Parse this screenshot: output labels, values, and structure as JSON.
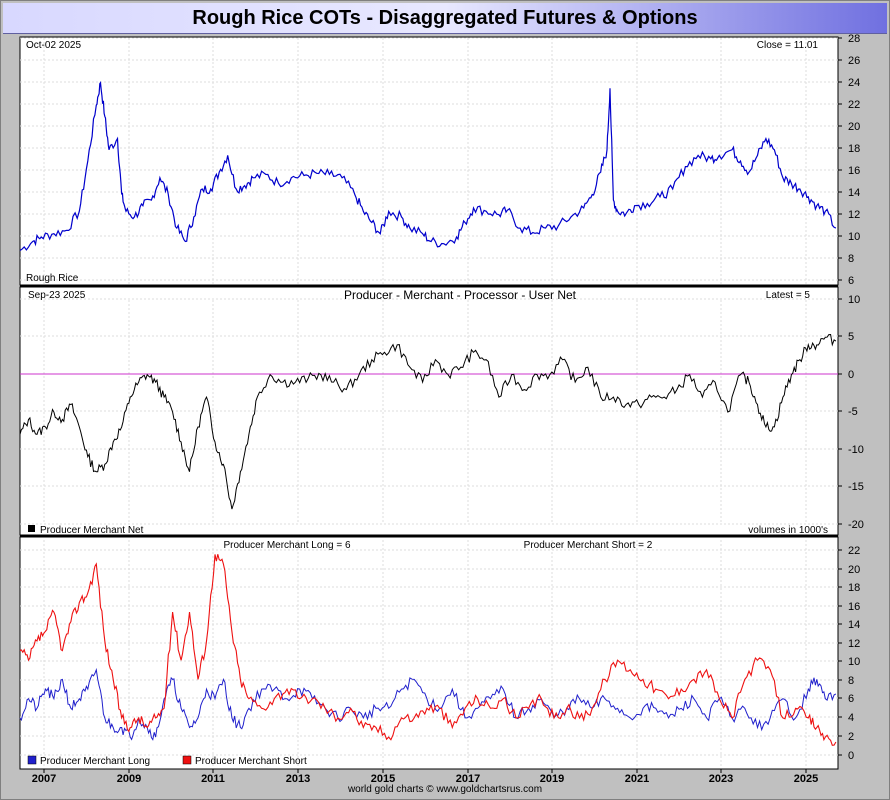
{
  "title": "Rough Rice COTs - Disaggregated Futures & Options",
  "footer": "world gold charts © www.goldchartsrus.com",
  "colors": {
    "price": "#0000cc",
    "net": "#000000",
    "long": "#2020cc",
    "short": "#ee1111",
    "zero": "#cc33cc",
    "background": "#ffffff",
    "panel_bg": "#c0c0c0"
  },
  "x_axis_years": [
    "2007",
    "2009",
    "2011",
    "2013",
    "2015",
    "2017",
    "2019",
    "2021",
    "2023",
    "2025"
  ],
  "panels": {
    "price": {
      "date_label": "Oct-02  2025",
      "close_label": "Close = 11.01",
      "bottom_label": "Rough Rice",
      "yticks": [
        "28",
        "26",
        "24",
        "22",
        "20",
        "18",
        "16",
        "14",
        "12",
        "10",
        "8",
        "6"
      ]
    },
    "net": {
      "date_label": "Sep-23  2025",
      "title": "Producer - Merchant - Processor - User Net",
      "latest_label": "Latest = 5",
      "legend": "Producer Merchant Net",
      "volume_note": "volumes in 1000's",
      "yticks": [
        "10",
        "5",
        "0",
        "-5",
        "-10",
        "-15",
        "-20"
      ]
    },
    "longshort": {
      "long_label": "Producer Merchant Long = 6",
      "short_label": "Producer Merchant Short = 2",
      "legend_long": "Producer Merchant Long",
      "legend_short": "Producer Merchant Short",
      "yticks": [
        "22",
        "20",
        "18",
        "16",
        "14",
        "12",
        "10",
        "8",
        "6",
        "4",
        "2",
        "0"
      ]
    }
  },
  "chart_data": [
    {
      "type": "line",
      "ylabel": "Rough Rice",
      "ylim": [
        6,
        28
      ],
      "xlim": [
        2006.5,
        2025.8
      ],
      "series": [
        {
          "x": [
            2006.5,
            2006.8,
            2007.0,
            2007.3,
            2007.6,
            2007.9,
            2008.1,
            2008.3,
            2008.4,
            2008.5,
            2008.6,
            2008.8,
            2008.9,
            2009.0,
            2009.2,
            2009.4,
            2009.6,
            2009.8,
            2010.0,
            2010.2,
            2010.4,
            2010.6,
            2010.8,
            2011.0,
            2011.2,
            2011.4,
            2011.6,
            2011.8,
            2012.0,
            2012.3,
            2012.6,
            2012.9,
            2013.2,
            2013.5,
            2013.8,
            2014.1,
            2014.4,
            2014.6,
            2014.8,
            2015.0,
            2015.2,
            2015.5,
            2015.7,
            2016.0,
            2016.2,
            2016.5,
            2016.8,
            2017.0,
            2017.2,
            2017.5,
            2017.8,
            2018.0,
            2018.3,
            2018.6,
            2018.9,
            2019.2,
            2019.5,
            2019.8,
            2020.0,
            2020.2,
            2020.35,
            2020.42,
            2020.5,
            2020.6,
            2020.8,
            2021.0,
            2021.3,
            2021.6,
            2021.9,
            2022.2,
            2022.5,
            2022.8,
            2023.0,
            2023.3,
            2023.5,
            2023.7,
            2023.9,
            2024.1,
            2024.3,
            2024.5,
            2024.7,
            2024.9,
            2025.1,
            2025.3,
            2025.5,
            2025.75
          ],
          "y": [
            9.0,
            9.8,
            10.2,
            10.5,
            10.8,
            12.5,
            17.0,
            22.0,
            24.0,
            21.0,
            18.0,
            19.0,
            14.0,
            12.5,
            12.0,
            13.0,
            13.5,
            15.5,
            14.0,
            11.0,
            9.8,
            12.0,
            14.5,
            14.5,
            16.0,
            17.5,
            14.5,
            14.8,
            15.5,
            15.8,
            15.0,
            15.5,
            15.7,
            15.9,
            15.8,
            15.5,
            14.0,
            12.5,
            11.5,
            10.5,
            12.5,
            12.0,
            11.0,
            10.5,
            9.8,
            9.6,
            10.2,
            11.5,
            12.8,
            12.5,
            12.2,
            12.6,
            11.0,
            10.6,
            11.0,
            11.2,
            12.0,
            12.8,
            14.0,
            16.0,
            18.0,
            23.5,
            13.5,
            12.5,
            12.3,
            13.0,
            13.2,
            13.8,
            14.5,
            16.5,
            17.5,
            17.2,
            17.5,
            18.0,
            17.0,
            16.0,
            17.5,
            19.0,
            18.0,
            15.5,
            15.0,
            14.5,
            13.8,
            13.0,
            12.5,
            11.0
          ]
        }
      ]
    },
    {
      "type": "line",
      "title": "Producer - Merchant - Processor - User Net",
      "ylim": [
        -20,
        10
      ],
      "xlim": [
        2006.5,
        2025.8
      ],
      "series": [
        {
          "name": "Producer Merchant Net",
          "x": [
            2006.5,
            2006.7,
            2006.9,
            2007.1,
            2007.3,
            2007.5,
            2007.7,
            2007.9,
            2008.1,
            2008.3,
            2008.5,
            2008.7,
            2008.9,
            2009.1,
            2009.3,
            2009.5,
            2009.7,
            2009.9,
            2010.1,
            2010.3,
            2010.5,
            2010.7,
            2010.9,
            2011.1,
            2011.3,
            2011.5,
            2011.7,
            2011.9,
            2012.1,
            2012.4,
            2012.7,
            2013.0,
            2013.3,
            2013.6,
            2013.9,
            2014.2,
            2014.5,
            2014.8,
            2015.1,
            2015.4,
            2015.7,
            2016.0,
            2016.3,
            2016.6,
            2016.9,
            2017.2,
            2017.5,
            2017.8,
            2018.1,
            2018.4,
            2018.7,
            2019.0,
            2019.3,
            2019.6,
            2019.9,
            2020.2,
            2020.5,
            2020.8,
            2021.1,
            2021.4,
            2021.7,
            2022.0,
            2022.3,
            2022.6,
            2022.9,
            2023.2,
            2023.5,
            2023.7,
            2023.9,
            2024.1,
            2024.3,
            2024.5,
            2024.7,
            2024.9,
            2025.1,
            2025.3,
            2025.5,
            2025.75
          ],
          "y": [
            -8,
            -6,
            -8,
            -7,
            -5,
            -6,
            -4,
            -7,
            -11,
            -13,
            -12,
            -9,
            -7,
            -3,
            -1,
            0,
            -1,
            -3,
            -5,
            -9,
            -13,
            -7,
            -3,
            -9,
            -12,
            -18,
            -13,
            -8,
            -3,
            0,
            -1,
            -1,
            -0.5,
            0,
            -1,
            -2,
            0,
            2,
            3,
            4,
            1,
            -1,
            2,
            0,
            1,
            3,
            2,
            -3,
            0,
            -2,
            0,
            0,
            2,
            -1,
            1,
            -3,
            -3,
            -4,
            -4,
            -3,
            -3,
            -2,
            0,
            -3,
            -1,
            -5,
            0,
            -1,
            -4,
            -7,
            -7,
            -3,
            0,
            2,
            4,
            4,
            5,
            4.5
          ]
        }
      ]
    },
    {
      "type": "line",
      "ylim": [
        -1,
        22.5
      ],
      "xlim": [
        2006.5,
        2025.8
      ],
      "series": [
        {
          "name": "Producer Merchant Long",
          "x": [
            2006.5,
            2006.7,
            2006.9,
            2007.1,
            2007.3,
            2007.5,
            2007.7,
            2007.9,
            2008.1,
            2008.3,
            2008.5,
            2008.7,
            2008.9,
            2009.1,
            2009.3,
            2009.5,
            2009.7,
            2009.9,
            2010.1,
            2010.3,
            2010.5,
            2010.7,
            2010.9,
            2011.1,
            2011.3,
            2011.5,
            2011.7,
            2011.9,
            2012.2,
            2012.5,
            2012.8,
            2013.1,
            2013.4,
            2013.7,
            2014.0,
            2014.3,
            2014.6,
            2014.9,
            2015.2,
            2015.5,
            2015.8,
            2016.1,
            2016.4,
            2016.7,
            2017.0,
            2017.3,
            2017.6,
            2017.9,
            2018.2,
            2018.5,
            2018.8,
            2019.1,
            2019.4,
            2019.7,
            2020.0,
            2020.3,
            2020.6,
            2020.9,
            2021.2,
            2021.5,
            2021.8,
            2022.1,
            2022.4,
            2022.7,
            2023.0,
            2023.3,
            2023.6,
            2023.9,
            2024.2,
            2024.5,
            2024.8,
            2025.1,
            2025.3,
            2025.5,
            2025.75
          ],
          "y": [
            4,
            6,
            5,
            7,
            6,
            8,
            5,
            6,
            7,
            9,
            4,
            3,
            3,
            2,
            4,
            3,
            2,
            6,
            8,
            5,
            3,
            4,
            7,
            6,
            8,
            4,
            3,
            5,
            7,
            7,
            6,
            7,
            6,
            5,
            4,
            5,
            4,
            5,
            5,
            7,
            8,
            6,
            5,
            7,
            4,
            5,
            6,
            7,
            4,
            5,
            6,
            4,
            5,
            6,
            5,
            6,
            5,
            4,
            5,
            5,
            4,
            5,
            6,
            4,
            6,
            4,
            5,
            3,
            4,
            6,
            4,
            7,
            8,
            6,
            6.5
          ]
        },
        {
          "name": "Producer Merchant Short",
          "x": [
            2006.5,
            2006.7,
            2006.9,
            2007.1,
            2007.3,
            2007.5,
            2007.7,
            2007.9,
            2008.1,
            2008.3,
            2008.5,
            2008.7,
            2008.9,
            2009.1,
            2009.3,
            2009.5,
            2009.7,
            2009.9,
            2010.1,
            2010.3,
            2010.5,
            2010.7,
            2010.9,
            2011.1,
            2011.3,
            2011.5,
            2011.7,
            2011.9,
            2012.2,
            2012.5,
            2012.8,
            2013.1,
            2013.4,
            2013.7,
            2014.0,
            2014.3,
            2014.6,
            2014.9,
            2015.2,
            2015.5,
            2015.8,
            2016.1,
            2016.4,
            2016.7,
            2017.0,
            2017.3,
            2017.6,
            2017.9,
            2018.2,
            2018.5,
            2018.8,
            2019.1,
            2019.4,
            2019.7,
            2020.0,
            2020.3,
            2020.6,
            2020.9,
            2021.2,
            2021.5,
            2021.8,
            2022.1,
            2022.4,
            2022.7,
            2023.0,
            2023.3,
            2023.6,
            2023.9,
            2024.2,
            2024.5,
            2024.8,
            2025.1,
            2025.3,
            2025.5,
            2025.75
          ],
          "y": [
            11,
            10,
            12,
            13,
            15,
            11,
            14,
            16,
            17,
            20,
            12,
            8,
            4,
            3,
            4,
            3,
            4,
            5,
            15,
            10,
            15,
            8,
            12,
            21,
            20,
            13,
            8,
            6,
            5,
            6,
            7,
            6,
            6,
            5,
            4,
            5,
            3,
            3,
            2,
            4,
            4,
            5,
            5,
            3,
            5,
            6,
            5,
            6,
            4,
            5,
            6,
            4,
            5,
            4,
            5,
            8,
            10,
            9,
            8,
            7,
            6,
            7,
            8,
            9,
            6,
            4,
            8,
            10,
            9,
            4,
            5,
            4,
            3,
            2,
            1.5
          ]
        }
      ]
    }
  ]
}
